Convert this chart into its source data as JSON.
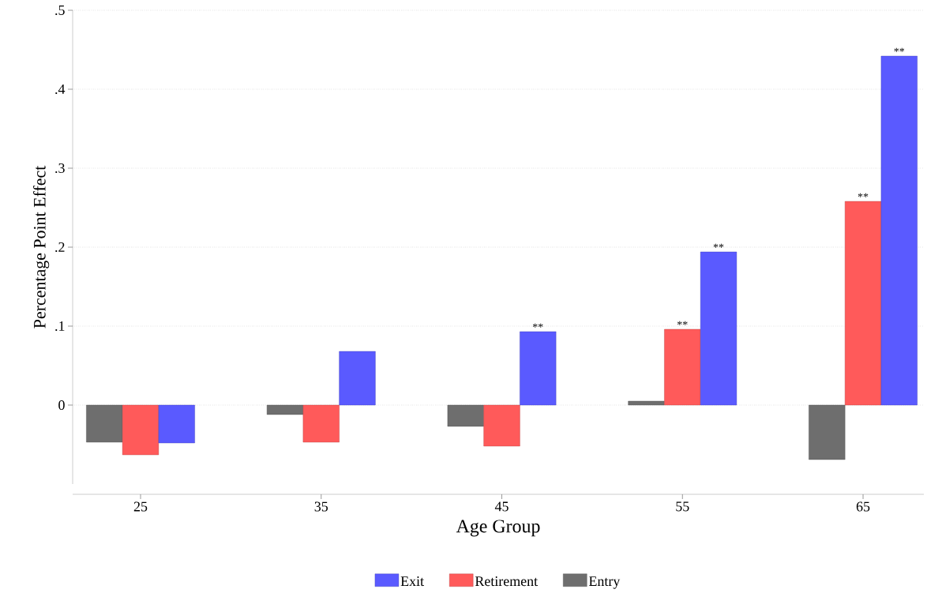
{
  "chart_data": {
    "type": "bar",
    "xlabel": "Age Group",
    "ylabel": "Percentage Point Effect",
    "categories": [
      "25",
      "35",
      "45",
      "55",
      "65"
    ],
    "series": [
      {
        "name": "Exit",
        "color": "#5a5aff",
        "values": [
          -0.048,
          0.068,
          0.093,
          0.194,
          0.442
        ],
        "value_labels": [
          null,
          null,
          "**",
          "**",
          "**"
        ]
      },
      {
        "name": "Retirement",
        "color": "#ff5a5a",
        "values": [
          -0.063,
          -0.047,
          -0.052,
          0.096,
          0.258
        ],
        "value_labels": [
          null,
          null,
          null,
          "**",
          "**"
        ]
      },
      {
        "name": "Entry",
        "color": "#6e6e6e",
        "values": [
          -0.047,
          -0.012,
          -0.027,
          0.005,
          -0.069
        ]
      }
    ],
    "ylim": [
      -0.1,
      0.5
    ],
    "yticks": [
      0,
      {
        "value": 0.1,
        "label": ".1"
      },
      {
        "value": 0.2,
        "label": ".2"
      },
      {
        "value": 0.3,
        "label": ".3"
      },
      {
        "value": 0.4,
        "label": ".4"
      },
      {
        "value": 0.5,
        "label": ".5"
      }
    ],
    "grid": "y",
    "legend": "bottom"
  }
}
